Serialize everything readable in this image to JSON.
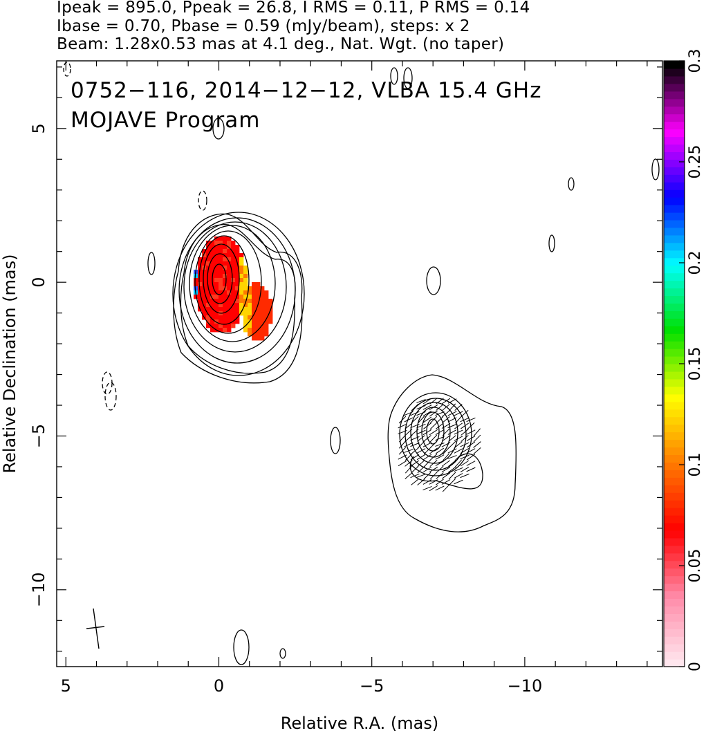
{
  "header": {
    "line1": "Ipeak = 895.0, Ppeak = 26.8, I RMS = 0.11, P RMS = 0.14",
    "line2": "Ibase = 0.70, Pbase = 0.59 (mJy/beam), steps: x 2",
    "line3": "Beam: 1.28x0.53 mas at 4.1 deg., Nat. Wgt. (no taper)"
  },
  "plot_title": {
    "line1": "0752−116, 2014−12−12, VLBA 15.4 GHz",
    "line2": "MOJAVE Program"
  },
  "chart_data": {
    "type": "heatmap",
    "xlabel": "Relative R.A. (mas)",
    "ylabel": "Relative Declination (mas)",
    "xlim": [
      5.3,
      -14.5
    ],
    "ylim": [
      -12.5,
      7.2
    ],
    "xticks": [
      5,
      0,
      -5,
      -10
    ],
    "xtick_labels": [
      "5",
      "0",
      "−5",
      "−10"
    ],
    "yticks": [
      5,
      0,
      -5,
      -10
    ],
    "ytick_labels": [
      "5",
      "0",
      "−5",
      "−10"
    ],
    "colorbar": {
      "min": 0,
      "max": 0.3,
      "ticks": [
        0,
        0.05,
        0.1,
        0.15,
        0.2,
        0.25,
        0.3
      ],
      "tick_labels": [
        "0",
        "0.05",
        "0.1",
        "0.15",
        "0.2",
        "0.25",
        "0.3"
      ],
      "colors": [
        "#ffe6ee",
        "#ff8aa8",
        "#ff0000",
        "#ff7a00",
        "#ffff00",
        "#00e000",
        "#00ffff",
        "#0000ff",
        "#ff00ff",
        "#000000"
      ]
    },
    "core_contour_levels": 9,
    "features": [
      {
        "name": "core",
        "x": 0.0,
        "y": 0.0
      },
      {
        "name": "secondary component",
        "x": -7.0,
        "y": -5.0
      }
    ]
  }
}
